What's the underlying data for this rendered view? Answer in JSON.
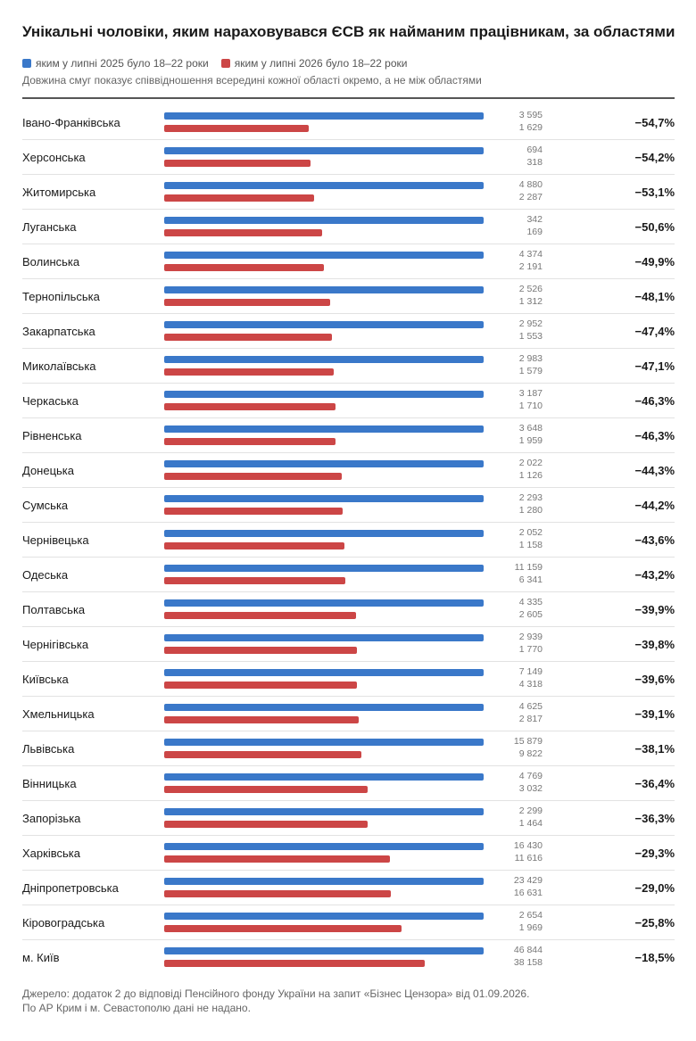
{
  "title": "Унікальні чоловіки, яким нараховувався ЄСВ як найманим працівникам, за областями",
  "subtitle": "Довжина смуг показує співвідношення всередині кожної області окремо, а не між областями",
  "footer": {
    "line1": "Джерело: додаток 2 до відповіді Пенсійного фонду України на запит «Бізнес Цензора» від 01.09.2026.",
    "line2": "По АР Крим і м. Севастополю дані не надано."
  },
  "colors": {
    "series_2025": "#3a78c9",
    "series_2026": "#cc4646"
  },
  "chart_data": {
    "type": "bar",
    "orientation": "horizontal",
    "legend_position": "top-left",
    "series": [
      {
        "name": "яким у липні 2025 було 18–22 роки",
        "color": "#3a78c9"
      },
      {
        "name": "яким у липні 2026 було 18–22 роки",
        "color": "#cc4646"
      }
    ],
    "rows": [
      {
        "region": "Івано-Франківська",
        "v2025": 3595,
        "v2026": 1629,
        "v2025_label": "3 595",
        "v2026_label": "1 629",
        "change": "−54,7%"
      },
      {
        "region": "Херсонська",
        "v2025": 694,
        "v2026": 318,
        "v2025_label": "694",
        "v2026_label": "318",
        "change": "−54,2%"
      },
      {
        "region": "Житомирська",
        "v2025": 4880,
        "v2026": 2287,
        "v2025_label": "4 880",
        "v2026_label": "2 287",
        "change": "−53,1%"
      },
      {
        "region": "Луганська",
        "v2025": 342,
        "v2026": 169,
        "v2025_label": "342",
        "v2026_label": "169",
        "change": "−50,6%"
      },
      {
        "region": "Волинська",
        "v2025": 4374,
        "v2026": 2191,
        "v2025_label": "4 374",
        "v2026_label": "2 191",
        "change": "−49,9%"
      },
      {
        "region": "Тернопільська",
        "v2025": 2526,
        "v2026": 1312,
        "v2025_label": "2 526",
        "v2026_label": "1 312",
        "change": "−48,1%"
      },
      {
        "region": "Закарпатська",
        "v2025": 2952,
        "v2026": 1553,
        "v2025_label": "2 952",
        "v2026_label": "1 553",
        "change": "−47,4%"
      },
      {
        "region": "Миколаївська",
        "v2025": 2983,
        "v2026": 1579,
        "v2025_label": "2 983",
        "v2026_label": "1 579",
        "change": "−47,1%"
      },
      {
        "region": "Черкаська",
        "v2025": 3187,
        "v2026": 1710,
        "v2025_label": "3 187",
        "v2026_label": "1 710",
        "change": "−46,3%"
      },
      {
        "region": "Рівненська",
        "v2025": 3648,
        "v2026": 1959,
        "v2025_label": "3 648",
        "v2026_label": "1 959",
        "change": "−46,3%"
      },
      {
        "region": "Донецька",
        "v2025": 2022,
        "v2026": 1126,
        "v2025_label": "2 022",
        "v2026_label": "1 126",
        "change": "−44,3%"
      },
      {
        "region": "Сумська",
        "v2025": 2293,
        "v2026": 1280,
        "v2025_label": "2 293",
        "v2026_label": "1 280",
        "change": "−44,2%"
      },
      {
        "region": "Чернівецька",
        "v2025": 2052,
        "v2026": 1158,
        "v2025_label": "2 052",
        "v2026_label": "1 158",
        "change": "−43,6%"
      },
      {
        "region": "Одеська",
        "v2025": 11159,
        "v2026": 6341,
        "v2025_label": "11 159",
        "v2026_label": "6 341",
        "change": "−43,2%"
      },
      {
        "region": "Полтавська",
        "v2025": 4335,
        "v2026": 2605,
        "v2025_label": "4 335",
        "v2026_label": "2 605",
        "change": "−39,9%"
      },
      {
        "region": "Чернігівська",
        "v2025": 2939,
        "v2026": 1770,
        "v2025_label": "2 939",
        "v2026_label": "1 770",
        "change": "−39,8%"
      },
      {
        "region": "Київська",
        "v2025": 7149,
        "v2026": 4318,
        "v2025_label": "7 149",
        "v2026_label": "4 318",
        "change": "−39,6%"
      },
      {
        "region": "Хмельницька",
        "v2025": 4625,
        "v2026": 2817,
        "v2025_label": "4 625",
        "v2026_label": "2 817",
        "change": "−39,1%"
      },
      {
        "region": "Львівська",
        "v2025": 15879,
        "v2026": 9822,
        "v2025_label": "15 879",
        "v2026_label": "9 822",
        "change": "−38,1%"
      },
      {
        "region": "Вінницька",
        "v2025": 4769,
        "v2026": 3032,
        "v2025_label": "4 769",
        "v2026_label": "3 032",
        "change": "−36,4%"
      },
      {
        "region": "Запорізька",
        "v2025": 2299,
        "v2026": 1464,
        "v2025_label": "2 299",
        "v2026_label": "1 464",
        "change": "−36,3%"
      },
      {
        "region": "Харківська",
        "v2025": 16430,
        "v2026": 11616,
        "v2025_label": "16 430",
        "v2026_label": "11 616",
        "change": "−29,3%"
      },
      {
        "region": "Дніпропетровська",
        "v2025": 23429,
        "v2026": 16631,
        "v2025_label": "23 429",
        "v2026_label": "16 631",
        "change": "−29,0%"
      },
      {
        "region": "Кіровоградська",
        "v2025": 2654,
        "v2026": 1969,
        "v2025_label": "2 654",
        "v2026_label": "1 969",
        "change": "−25,8%"
      },
      {
        "region": "м. Київ",
        "v2025": 46844,
        "v2026": 38158,
        "v2025_label": "46 844",
        "v2026_label": "38 158",
        "change": "−18,5%"
      }
    ]
  }
}
